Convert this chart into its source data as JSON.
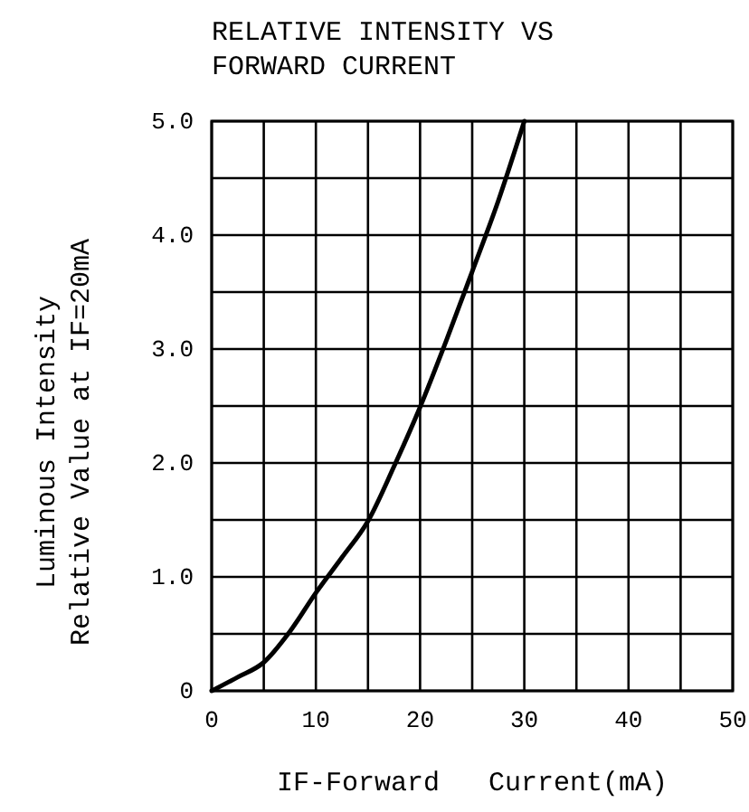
{
  "chart_data": {
    "type": "line",
    "title": "RELATIVE INTENSITY VS\nFORWARD CURRENT",
    "xlabel": "IF-Forward   Current(mA)",
    "ylabel": "Luminous Intensity\nRelative Value at IF=20mA",
    "x": [
      0,
      2.5,
      5,
      7.5,
      10,
      12.5,
      15,
      17.5,
      20,
      22.5,
      25,
      27.5,
      30
    ],
    "series": [
      {
        "color": "#000000",
        "values": [
          0,
          0.12,
          0.25,
          0.52,
          0.86,
          1.17,
          1.49,
          1.97,
          2.49,
          3.07,
          3.68,
          4.3,
          5.0
        ]
      }
    ],
    "xlim": [
      0,
      50
    ],
    "ylim": [
      0,
      5
    ],
    "xticks": [
      0,
      {
        "value": 5,
        "label": null
      },
      10,
      {
        "value": 15,
        "label": null
      },
      20,
      {
        "value": 25,
        "label": null
      },
      30,
      {
        "value": 35,
        "label": null
      },
      40,
      {
        "value": 45,
        "label": null
      },
      50
    ],
    "yticks": [
      0,
      {
        "value": 0.5,
        "label": null
      },
      {
        "value": 1,
        "label": "1.0"
      },
      {
        "value": 1.5,
        "label": null
      },
      {
        "value": 2,
        "label": "2.0"
      },
      {
        "value": 2.5,
        "label": null
      },
      {
        "value": 3,
        "label": "3.0"
      },
      {
        "value": 3.5,
        "label": null
      },
      {
        "value": 4,
        "label": "4.0"
      },
      {
        "value": 4.5,
        "label": null
      },
      {
        "value": 5,
        "label": "5.0"
      }
    ],
    "grid": true,
    "line_style": "solid"
  }
}
